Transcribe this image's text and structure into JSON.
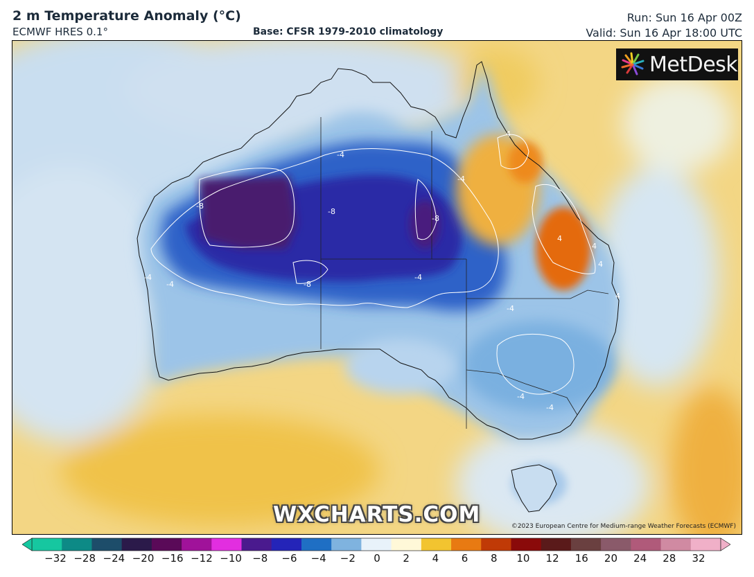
{
  "header": {
    "title": "2 m Temperature Anomaly (°C)",
    "model": "ECMWF HRES 0.1°",
    "base": "Base: CFSR 1979-2010 climatology",
    "run": "Run: Sun 16 Apr 00Z",
    "valid": "Valid: Sun 16 Apr 18:00 UTC"
  },
  "logo": {
    "text": "MetDesk",
    "icon": "metdesk-burst-icon"
  },
  "watermark": "WXCHARTS.COM",
  "copyright": "©2023 European Centre for Medium-range Weather Forecasts (ECMWF)",
  "contour_labels": [
    "-4",
    "-4",
    "-4",
    "-4",
    "-4",
    "-4",
    "-4",
    "-4",
    "-8",
    "-8",
    "-8",
    "-8",
    "4",
    "4",
    "4",
    "4",
    "4"
  ],
  "colorbar": {
    "ticks": [
      "−32",
      "−28",
      "−24",
      "−20",
      "−16",
      "−12",
      "−10",
      "−8",
      "−6",
      "−4",
      "−2",
      "0",
      "2",
      "4",
      "6",
      "8",
      "10",
      "12",
      "16",
      "20",
      "24",
      "28",
      "32"
    ],
    "colors": [
      "#16c7a0",
      "#0d8a86",
      "#1d4d6a",
      "#2b1a4a",
      "#5a0a58",
      "#a0129a",
      "#e22ee0",
      "#4a1a8e",
      "#2424b8",
      "#1f6fc4",
      "#7fb3df",
      "#e8f2fa",
      "#fff8d8",
      "#f2c430",
      "#e87a12",
      "#c03a06",
      "#8a0a0a",
      "#5a1a1a",
      "#6a4040",
      "#8a5a6a",
      "#b05a7a",
      "#d08aa2",
      "#f0b0c8"
    ]
  }
}
